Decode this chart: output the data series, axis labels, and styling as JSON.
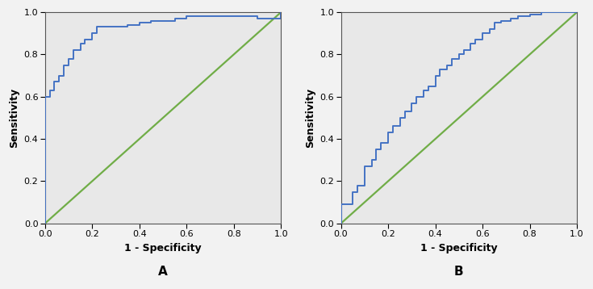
{
  "panel_A_fpr": [
    0.0,
    0.0,
    0.0,
    0.02,
    0.02,
    0.04,
    0.04,
    0.06,
    0.06,
    0.08,
    0.08,
    0.1,
    0.1,
    0.12,
    0.12,
    0.15,
    0.15,
    0.17,
    0.17,
    0.2,
    0.2,
    0.22,
    0.22,
    0.35,
    0.35,
    0.4,
    0.4,
    0.45,
    0.45,
    0.5,
    0.5,
    0.55,
    0.55,
    0.6,
    0.6,
    0.9,
    0.9,
    1.0,
    1.0
  ],
  "panel_A_tpr": [
    0.0,
    0.4,
    0.6,
    0.6,
    0.63,
    0.63,
    0.67,
    0.67,
    0.7,
    0.7,
    0.75,
    0.75,
    0.78,
    0.78,
    0.82,
    0.82,
    0.85,
    0.85,
    0.87,
    0.87,
    0.9,
    0.9,
    0.93,
    0.93,
    0.94,
    0.94,
    0.95,
    0.95,
    0.96,
    0.96,
    0.96,
    0.96,
    0.97,
    0.97,
    0.98,
    0.98,
    0.97,
    0.97,
    1.0
  ],
  "panel_B_fpr": [
    0.0,
    0.0,
    0.05,
    0.05,
    0.07,
    0.07,
    0.1,
    0.1,
    0.13,
    0.13,
    0.15,
    0.15,
    0.17,
    0.17,
    0.2,
    0.2,
    0.22,
    0.22,
    0.25,
    0.25,
    0.27,
    0.27,
    0.3,
    0.3,
    0.32,
    0.32,
    0.35,
    0.35,
    0.37,
    0.37,
    0.4,
    0.4,
    0.42,
    0.42,
    0.45,
    0.45,
    0.47,
    0.47,
    0.5,
    0.5,
    0.52,
    0.52,
    0.55,
    0.55,
    0.57,
    0.57,
    0.6,
    0.6,
    0.63,
    0.63,
    0.65,
    0.65,
    0.68,
    0.68,
    0.72,
    0.72,
    0.75,
    0.75,
    0.8,
    0.8,
    0.85,
    0.85,
    0.9,
    0.9,
    0.95,
    0.95,
    1.0
  ],
  "panel_B_tpr": [
    0.0,
    0.09,
    0.09,
    0.15,
    0.15,
    0.18,
    0.18,
    0.27,
    0.27,
    0.3,
    0.3,
    0.35,
    0.35,
    0.38,
    0.38,
    0.43,
    0.43,
    0.46,
    0.46,
    0.5,
    0.5,
    0.53,
    0.53,
    0.57,
    0.57,
    0.6,
    0.6,
    0.63,
    0.63,
    0.65,
    0.65,
    0.7,
    0.7,
    0.73,
    0.73,
    0.75,
    0.75,
    0.78,
    0.78,
    0.8,
    0.8,
    0.82,
    0.82,
    0.85,
    0.85,
    0.87,
    0.87,
    0.9,
    0.9,
    0.92,
    0.92,
    0.95,
    0.95,
    0.96,
    0.96,
    0.97,
    0.97,
    0.98,
    0.98,
    0.99,
    0.99,
    1.0,
    1.0,
    1.0,
    1.0,
    1.0,
    1.0
  ],
  "roc_color": "#4472C4",
  "diag_color": "#70AD47",
  "bg_color": "#E8E8E8",
  "fig_bg_color": "#F2F2F2",
  "xlabel": "1 - Specificity",
  "ylabel": "Sensitivity",
  "label_A": "A",
  "label_B": "B",
  "tick_vals": [
    0.0,
    0.2,
    0.4,
    0.6,
    0.8,
    1.0
  ],
  "xlim": [
    0.0,
    1.0
  ],
  "ylim": [
    0.0,
    1.0
  ],
  "roc_linewidth": 1.4,
  "diag_linewidth": 1.6,
  "xlabel_fontsize": 9,
  "ylabel_fontsize": 9,
  "tick_fontsize": 8,
  "label_fontsize": 11
}
